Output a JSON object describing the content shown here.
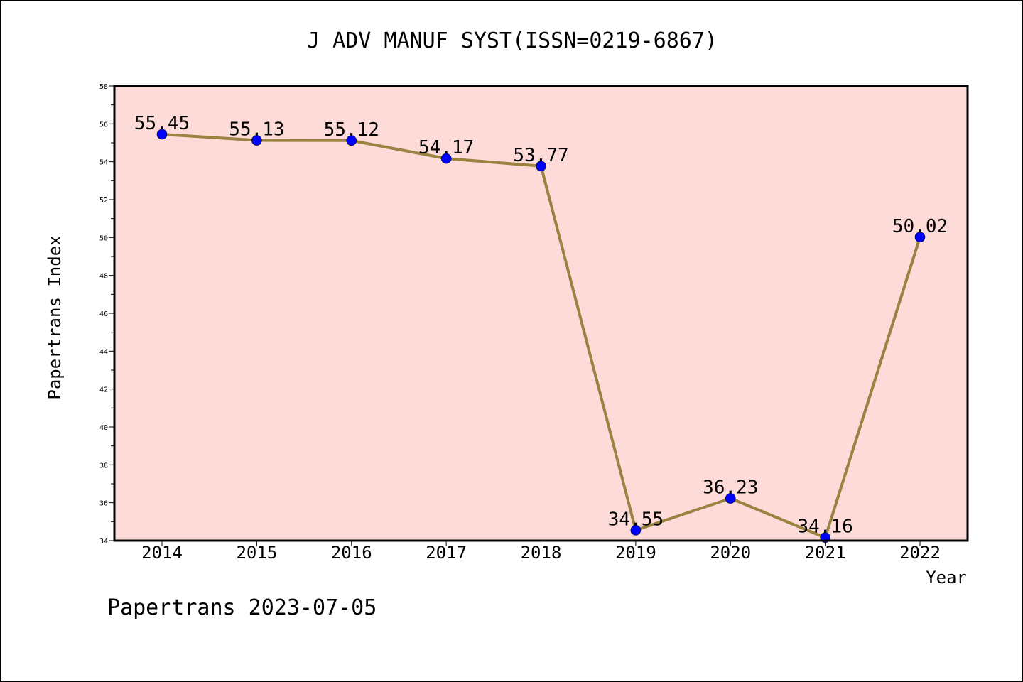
{
  "chart_data": {
    "type": "line",
    "title": "J ADV MANUF SYST(ISSN=0219-6867)",
    "xlabel": "Year",
    "ylabel": "Papertrans Index",
    "categories": [
      "2014",
      "2015",
      "2016",
      "2017",
      "2018",
      "2019",
      "2020",
      "2021",
      "2022"
    ],
    "series": [
      {
        "values": [
          55.45,
          55.13,
          55.12,
          54.17,
          53.77,
          34.55,
          36.23,
          34.16,
          50.02
        ]
      }
    ],
    "data_labels": [
      "55.45",
      "55.13",
      "55.12",
      "54.17",
      "53.77",
      "34.55",
      "36.23",
      "34.16",
      "50.02"
    ],
    "ylim": [
      34,
      58
    ],
    "yticks": [
      "34",
      "36",
      "38",
      "40",
      "42",
      "44",
      "46",
      "48",
      "50",
      "52",
      "54",
      "56",
      "58"
    ],
    "grid": false,
    "footer": "Papertrans 2023-07-05",
    "colors": {
      "plot_background": "#fddbd8",
      "line": "#9a8340",
      "marker": "#0000ff",
      "axis": "#000000"
    }
  }
}
